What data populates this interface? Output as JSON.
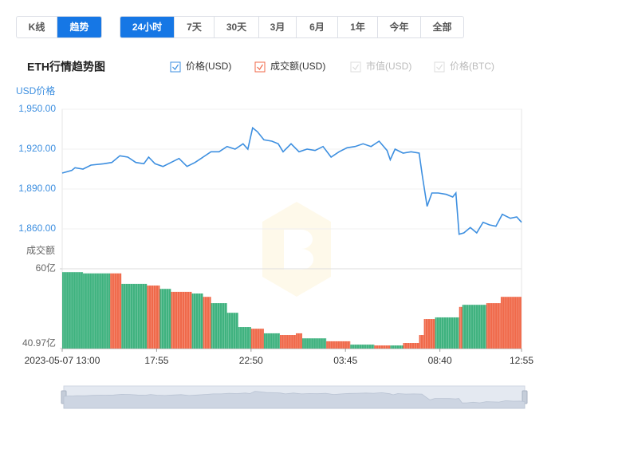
{
  "controls": {
    "view_tabs": [
      "K线",
      "趋势"
    ],
    "active_view": 1,
    "periods": [
      "24小时",
      "7天",
      "30天",
      "3月",
      "6月",
      "1年",
      "今年",
      "全部"
    ],
    "active_period": 0
  },
  "chart_data": {
    "type": "price-volume",
    "title": "ETH行情趋势图",
    "ylabel": "USD价格",
    "y2label": "成交额",
    "series": [
      {
        "name": "价格(USD)",
        "color": "#3d8fe0",
        "checked": true,
        "x": [
          0,
          30,
          40,
          65,
          90,
          130,
          155,
          180,
          205,
          230,
          255,
          270,
          290,
          315,
          340,
          365,
          390,
          415,
          440,
          465,
          490,
          515,
          540,
          565,
          580,
          595,
          610,
          630,
          655,
          675,
          690,
          715,
          740,
          765,
          790,
          815,
          840,
          865,
          890,
          915,
          940,
          965,
          990,
          1015,
          1025,
          1040,
          1065,
          1090,
          1115,
          1125,
          1140,
          1155,
          1175,
          1200,
          1220,
          1230,
          1240,
          1255,
          1275,
          1295,
          1315,
          1335,
          1355,
          1375,
          1400,
          1420,
          1435
        ],
        "values": [
          1902,
          1904,
          1906,
          1905,
          1908,
          1909,
          1910,
          1915,
          1914,
          1910,
          1909,
          1914,
          1909,
          1907,
          1910,
          1913,
          1907,
          1910,
          1914,
          1918,
          1918,
          1922,
          1920,
          1924,
          1920,
          1936,
          1933,
          1927,
          1926,
          1924,
          1918,
          1924,
          1918,
          1920,
          1919,
          1922,
          1914,
          1918,
          1921,
          1922,
          1924,
          1922,
          1926,
          1919,
          1912,
          1920,
          1917,
          1918,
          1917,
          1900,
          1877,
          1887,
          1887,
          1886,
          1884,
          1887,
          1856,
          1857,
          1861,
          1857,
          1865,
          1863,
          1862,
          1871,
          1868,
          1869,
          1865
        ]
      },
      {
        "name": "成交额(USD)",
        "color": "#f0694a",
        "checked": true,
        "axis": "y2",
        "x": [
          0,
          65,
          150,
          185,
          265,
          305,
          340,
          405,
          440,
          465,
          515,
          550,
          590,
          630,
          680,
          730,
          750,
          825,
          900,
          975,
          1025,
          1065,
          1115,
          1130,
          1165,
          1240,
          1250,
          1325,
          1370
        ],
        "values": [
          59.2,
          58.9,
          58.9,
          56.4,
          56.0,
          55.2,
          54.5,
          54.1,
          53.3,
          51.8,
          49.5,
          46.1,
          45.7,
          44.6,
          44.2,
          44.6,
          43.4,
          42.7,
          41.9,
          41.7,
          41.7,
          42.3,
          44.2,
          48.0,
          48.4,
          50.9,
          51.4,
          51.8,
          53.3
        ],
        "bar_colors": [
          "#3fb27f",
          "#3fb27f",
          "#f0694a",
          "#3fb27f",
          "#f0694a",
          "#3fb27f",
          "#f0694a",
          "#3fb27f",
          "#f0694a",
          "#3fb27f",
          "#3fb27f",
          "#3fb27f",
          "#f0694a",
          "#3fb27f",
          "#f0694a",
          "#f0694a",
          "#3fb27f",
          "#f0694a",
          "#3fb27f",
          "#f0694a",
          "#3fb27f",
          "#f0694a",
          "#f0694a",
          "#f0694a",
          "#3fb27f",
          "#f0694a",
          "#3fb27f",
          "#f0694a",
          "#f0694a"
        ]
      }
    ],
    "inactive_legend": [
      "市值(USD)",
      "价格(BTC)"
    ],
    "xlim": [
      0,
      1435
    ],
    "xticks": [
      {
        "value": 0,
        "label": "2023-05-07 13:00"
      },
      {
        "value": 295,
        "label": "17:55"
      },
      {
        "value": 590,
        "label": "22:50"
      },
      {
        "value": 885,
        "label": "03:45"
      },
      {
        "value": 1180,
        "label": "08:40"
      },
      {
        "value": 1435,
        "label": "12:55"
      }
    ],
    "ylim": [
      1830,
      1950
    ],
    "yticks": [
      {
        "value": 1950,
        "label": "1,950.00"
      },
      {
        "value": 1920,
        "label": "1,920.00"
      },
      {
        "value": 1890,
        "label": "1,890.00"
      },
      {
        "value": 1860,
        "label": "1,860.00"
      }
    ],
    "y2lim": [
      40.97,
      60
    ],
    "y2ticks": [
      {
        "value": 60,
        "label": "60亿"
      },
      {
        "value": 40.97,
        "label": "40.97亿"
      }
    ],
    "grid": true
  }
}
